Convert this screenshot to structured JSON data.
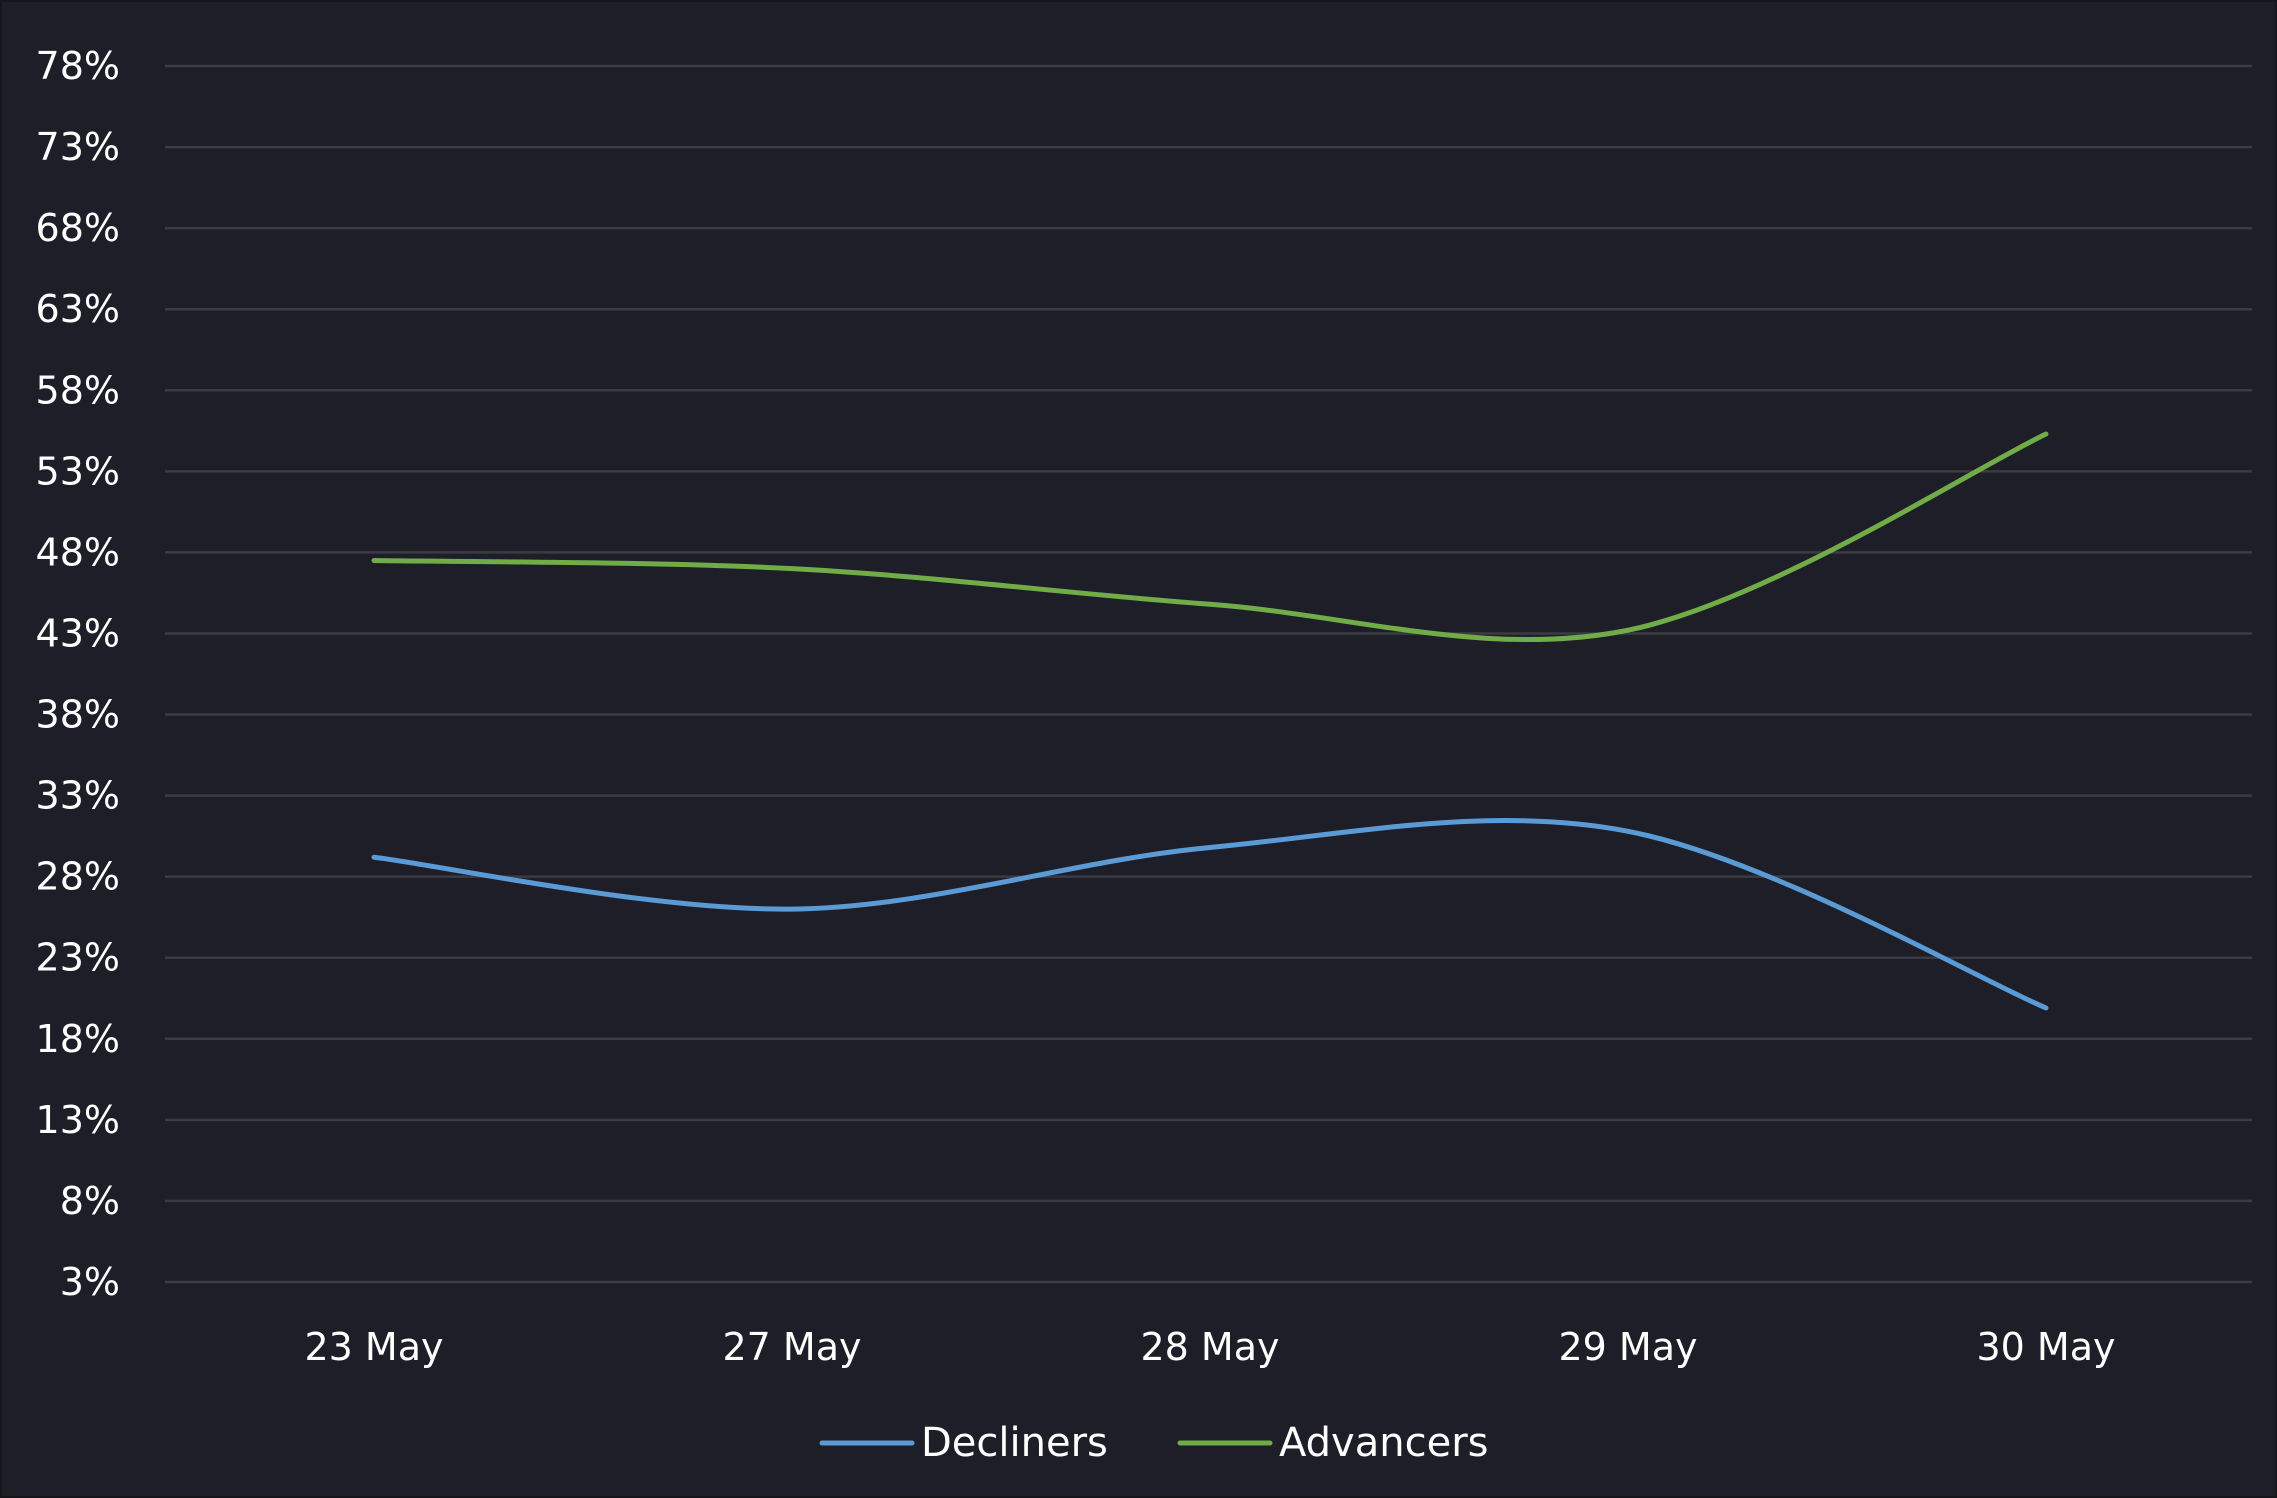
{
  "chart_data": {
    "type": "line",
    "title": "",
    "xlabel": "",
    "ylabel": "",
    "categories": [
      "23 May",
      "27 May",
      "28 May",
      "29 May",
      "30 May"
    ],
    "y_ticks": [
      "78%",
      "73%",
      "68%",
      "63%",
      "58%",
      "53%",
      "48%",
      "43%",
      "38%",
      "33%",
      "28%",
      "23%",
      "18%",
      "13%",
      "8%",
      "3%"
    ],
    "ylim": [
      3,
      78
    ],
    "grid": true,
    "legend_position": "bottom",
    "smooth": true,
    "series": [
      {
        "name": "Decliners",
        "color": "#5b9bd5",
        "values": [
          29.2,
          26.0,
          29.8,
          30.8,
          19.9
        ]
      },
      {
        "name": "Advancers",
        "color": "#70ad47",
        "values": [
          47.5,
          47.0,
          44.8,
          43.2,
          55.3
        ]
      }
    ]
  },
  "colors": {
    "background": "#1e1e28",
    "grid": "#3b3b44",
    "text": "#ffffff"
  }
}
